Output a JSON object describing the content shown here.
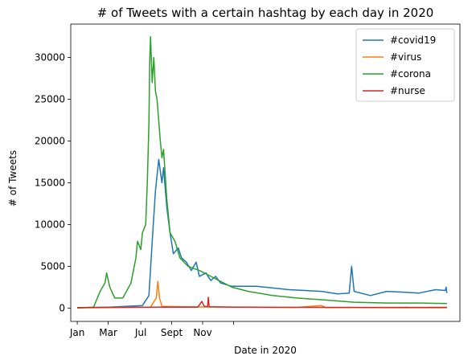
{
  "chart_data": {
    "type": "line",
    "title": "# of Tweets with a certain hashtag by each day in 2020",
    "xlabel": "Date in 2020",
    "ylabel": "# of Tweets",
    "xlim": [
      -8,
      470
    ],
    "ylim": [
      -1600,
      34000
    ],
    "grid": false,
    "legend_position": "top-right",
    "x_ticks": [
      {
        "label": "Jan",
        "x": 0
      },
      {
        "label": "Mar",
        "x": 38
      },
      {
        "label": "Jul",
        "x": 78
      },
      {
        "label": "Sept",
        "x": 116
      },
      {
        "label": "Nov",
        "x": 154
      },
      {
        "label": "",
        "x": 192
      }
    ],
    "y_ticks": [
      0,
      5000,
      10000,
      15000,
      20000,
      25000,
      30000
    ],
    "series": [
      {
        "name": "#covid19",
        "color": "#1f77b4",
        "points": [
          [
            0,
            50
          ],
          [
            40,
            100
          ],
          [
            80,
            300
          ],
          [
            88,
            1500
          ],
          [
            92,
            8000
          ],
          [
            96,
            14000
          ],
          [
            100,
            17800
          ],
          [
            104,
            15000
          ],
          [
            106,
            16800
          ],
          [
            110,
            12000
          ],
          [
            114,
            9000
          ],
          [
            118,
            6500
          ],
          [
            124,
            7200
          ],
          [
            128,
            6000
          ],
          [
            134,
            5500
          ],
          [
            140,
            4500
          ],
          [
            146,
            5500
          ],
          [
            150,
            3800
          ],
          [
            158,
            4200
          ],
          [
            164,
            3300
          ],
          [
            170,
            3800
          ],
          [
            176,
            3000
          ],
          [
            190,
            2600
          ],
          [
            220,
            2600
          ],
          [
            260,
            2200
          ],
          [
            300,
            2000
          ],
          [
            320,
            1700
          ],
          [
            334,
            1800
          ],
          [
            337,
            5000
          ],
          [
            340,
            2000
          ],
          [
            360,
            1500
          ],
          [
            380,
            2000
          ],
          [
            420,
            1800
          ],
          [
            440,
            2200
          ],
          [
            452,
            2100
          ],
          [
            453,
            2500
          ],
          [
            454,
            1800
          ]
        ]
      },
      {
        "name": "#virus",
        "color": "#ff7f0e",
        "points": [
          [
            0,
            30
          ],
          [
            30,
            50
          ],
          [
            60,
            80
          ],
          [
            90,
            100
          ],
          [
            97,
            1200
          ],
          [
            99,
            3200
          ],
          [
            101,
            1200
          ],
          [
            104,
            200
          ],
          [
            130,
            150
          ],
          [
            180,
            120
          ],
          [
            220,
            100
          ],
          [
            270,
            80
          ],
          [
            300,
            300
          ],
          [
            305,
            50
          ],
          [
            340,
            60
          ],
          [
            380,
            50
          ],
          [
            454,
            40
          ]
        ]
      },
      {
        "name": "#corona",
        "color": "#2ca02c",
        "points": [
          [
            0,
            0
          ],
          [
            20,
            100
          ],
          [
            28,
            2000
          ],
          [
            34,
            3000
          ],
          [
            36,
            4200
          ],
          [
            40,
            2500
          ],
          [
            46,
            1200
          ],
          [
            56,
            1200
          ],
          [
            66,
            3000
          ],
          [
            72,
            6000
          ],
          [
            74,
            8000
          ],
          [
            78,
            7000
          ],
          [
            80,
            9000
          ],
          [
            84,
            10000
          ],
          [
            86,
            15000
          ],
          [
            88,
            22000
          ],
          [
            89,
            29500
          ],
          [
            90,
            32500
          ],
          [
            92,
            27000
          ],
          [
            94,
            30000
          ],
          [
            96,
            26000
          ],
          [
            98,
            25000
          ],
          [
            102,
            20000
          ],
          [
            104,
            18000
          ],
          [
            106,
            19000
          ],
          [
            110,
            13000
          ],
          [
            114,
            9000
          ],
          [
            120,
            8000
          ],
          [
            126,
            6000
          ],
          [
            136,
            5000
          ],
          [
            150,
            4500
          ],
          [
            170,
            3500
          ],
          [
            190,
            2500
          ],
          [
            210,
            2000
          ],
          [
            240,
            1500
          ],
          [
            270,
            1200
          ],
          [
            300,
            1000
          ],
          [
            340,
            700
          ],
          [
            380,
            600
          ],
          [
            420,
            600
          ],
          [
            454,
            550
          ]
        ]
      },
      {
        "name": "#nurse",
        "color": "#d62728",
        "points": [
          [
            0,
            60
          ],
          [
            60,
            80
          ],
          [
            100,
            100
          ],
          [
            148,
            100
          ],
          [
            153,
            800
          ],
          [
            156,
            200
          ],
          [
            160,
            150
          ],
          [
            161,
            1300
          ],
          [
            162,
            150
          ],
          [
            190,
            100
          ],
          [
            250,
            80
          ],
          [
            300,
            80
          ],
          [
            380,
            70
          ],
          [
            454,
            80
          ]
        ]
      }
    ]
  }
}
